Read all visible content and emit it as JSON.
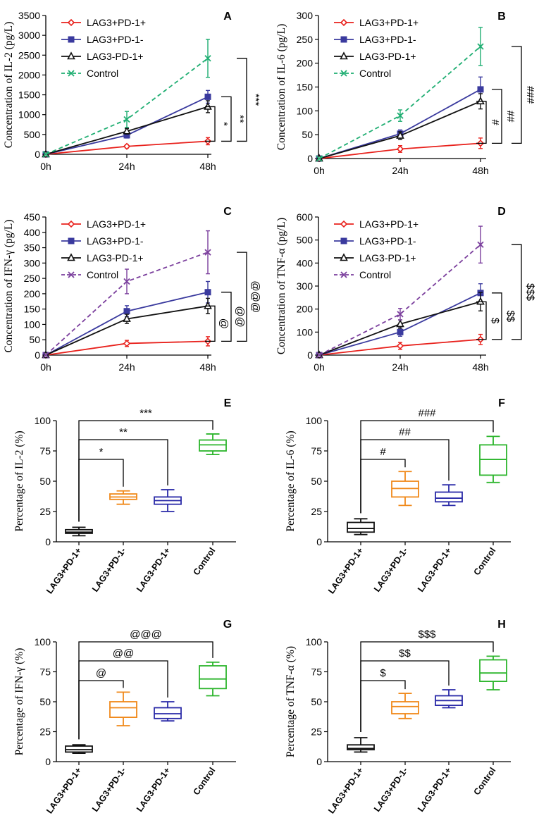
{
  "chart_data": [
    {
      "id": "A",
      "type": "line",
      "panel_label": "A",
      "ylabel": "Concentration of IL-2 (pg/L)",
      "categories": [
        "0h",
        "24h",
        "48h"
      ],
      "ylim": [
        0,
        3500
      ],
      "yticks": [
        0,
        500,
        1000,
        1500,
        2000,
        2500,
        3000,
        3500
      ],
      "legend": "top-left",
      "series": [
        {
          "name": "LAG3+PD-1+",
          "values": [
            0,
            200,
            330
          ],
          "err": [
            0,
            40,
            90
          ],
          "color": "#e8211c",
          "marker": "diamond",
          "dash": false
        },
        {
          "name": "LAG3+PD-1-",
          "values": [
            0,
            480,
            1450
          ],
          "err": [
            0,
            70,
            160
          ],
          "color": "#3a3a9e",
          "marker": "square",
          "dash": false
        },
        {
          "name": "LAG3-PD-1+",
          "values": [
            0,
            580,
            1200
          ],
          "err": [
            0,
            70,
            150
          ],
          "color": "#111111",
          "marker": "triangle",
          "dash": false
        },
        {
          "name": "Control",
          "values": [
            0,
            880,
            2420
          ],
          "err": [
            0,
            200,
            480
          ],
          "color": "#1fae72",
          "marker": "x",
          "dash": true
        }
      ],
      "brackets": [
        {
          "y": [
            330,
            1200
          ],
          "label": "*"
        },
        {
          "y": [
            330,
            1450
          ],
          "label": "**"
        },
        {
          "y": [
            330,
            2420
          ],
          "label": "***"
        }
      ]
    },
    {
      "id": "B",
      "type": "line",
      "panel_label": "B",
      "ylabel": "Concentration of IL-6 (pg/L)",
      "categories": [
        "0h",
        "24h",
        "48h"
      ],
      "ylim": [
        0,
        300
      ],
      "yticks": [
        0,
        50,
        100,
        150,
        200,
        250,
        300
      ],
      "legend": "top-left",
      "series": [
        {
          "name": "LAG3+PD-1+",
          "values": [
            0,
            20,
            32
          ],
          "err": [
            0,
            7,
            11
          ],
          "color": "#e8211c",
          "marker": "diamond",
          "dash": false
        },
        {
          "name": "LAG3+PD-1-",
          "values": [
            0,
            52,
            145
          ],
          "err": [
            0,
            8,
            26
          ],
          "color": "#3a3a9e",
          "marker": "square",
          "dash": false
        },
        {
          "name": "LAG3-PD-1+",
          "values": [
            0,
            48,
            120
          ],
          "err": [
            0,
            8,
            16
          ],
          "color": "#111111",
          "marker": "triangle",
          "dash": false
        },
        {
          "name": "Control",
          "values": [
            0,
            90,
            235
          ],
          "err": [
            0,
            12,
            40
          ],
          "color": "#1fae72",
          "marker": "x",
          "dash": true
        }
      ],
      "brackets": [
        {
          "y": [
            32,
            120
          ],
          "label": "#"
        },
        {
          "y": [
            32,
            145
          ],
          "label": "##"
        },
        {
          "y": [
            32,
            235
          ],
          "label": "###"
        }
      ]
    },
    {
      "id": "C",
      "type": "line",
      "panel_label": "C",
      "ylabel": "Concentration of IFN-γ (pg/L)",
      "categories": [
        "0h",
        "24h",
        "48h"
      ],
      "ylim": [
        0,
        450
      ],
      "yticks": [
        0,
        50,
        100,
        150,
        200,
        250,
        300,
        350,
        400,
        450
      ],
      "legend": "top-left",
      "series": [
        {
          "name": "LAG3+PD-1+",
          "values": [
            0,
            38,
            45
          ],
          "err": [
            0,
            10,
            15
          ],
          "color": "#e8211c",
          "marker": "diamond",
          "dash": false
        },
        {
          "name": "LAG3+PD-1-",
          "values": [
            0,
            143,
            205
          ],
          "err": [
            0,
            18,
            35
          ],
          "color": "#3a3a9e",
          "marker": "square",
          "dash": false
        },
        {
          "name": "LAG3-PD-1+",
          "values": [
            0,
            118,
            160
          ],
          "err": [
            0,
            15,
            25
          ],
          "color": "#111111",
          "marker": "triangle",
          "dash": false
        },
        {
          "name": "Control",
          "values": [
            0,
            240,
            335
          ],
          "err": [
            0,
            40,
            70
          ],
          "color": "#7b3f9d",
          "marker": "x",
          "dash": true
        }
      ],
      "brackets": [
        {
          "y": [
            45,
            160
          ],
          "label": "@"
        },
        {
          "y": [
            45,
            205
          ],
          "label": "@@"
        },
        {
          "y": [
            45,
            335
          ],
          "label": "@@@"
        }
      ]
    },
    {
      "id": "D",
      "type": "line",
      "panel_label": "D",
      "ylabel": "Concentration of TNF-α (pg/L)",
      "categories": [
        "0h",
        "24h",
        "48h"
      ],
      "ylim": [
        0,
        600
      ],
      "yticks": [
        0,
        100,
        200,
        300,
        400,
        500,
        600
      ],
      "legend": "top-left",
      "series": [
        {
          "name": "LAG3+PD-1+",
          "values": [
            0,
            40,
            68
          ],
          "err": [
            0,
            15,
            22
          ],
          "color": "#e8211c",
          "marker": "diamond",
          "dash": false
        },
        {
          "name": "LAG3+PD-1-",
          "values": [
            0,
            100,
            270
          ],
          "err": [
            0,
            18,
            40
          ],
          "color": "#3a3a9e",
          "marker": "square",
          "dash": false
        },
        {
          "name": "LAG3-PD-1+",
          "values": [
            0,
            135,
            232
          ],
          "err": [
            0,
            18,
            40
          ],
          "color": "#111111",
          "marker": "triangle",
          "dash": false
        },
        {
          "name": "Control",
          "values": [
            0,
            178,
            480
          ],
          "err": [
            0,
            25,
            80
          ],
          "color": "#7b3f9d",
          "marker": "x",
          "dash": true
        }
      ],
      "brackets": [
        {
          "y": [
            68,
            232
          ],
          "label": "$"
        },
        {
          "y": [
            68,
            270
          ],
          "label": "$$"
        },
        {
          "y": [
            68,
            480
          ],
          "label": "$$$"
        }
      ]
    },
    {
      "id": "E",
      "type": "box",
      "panel_label": "E",
      "ylabel": "Percentage of IL-2 (%)",
      "categories": [
        "LAG3+PD-1+",
        "LAG3+PD-1-",
        "LAG3-PD-1+",
        "Control"
      ],
      "ylim": [
        0,
        100
      ],
      "yticks": [
        0,
        25,
        50,
        75,
        100
      ],
      "boxes": [
        {
          "min": 5,
          "q1": 7,
          "median": 8,
          "q3": 10,
          "max": 12,
          "color": "#111111"
        },
        {
          "min": 31,
          "q1": 35,
          "median": 37,
          "q3": 39.5,
          "max": 42,
          "color": "#f0891a"
        },
        {
          "min": 25,
          "q1": 31,
          "median": 34,
          "q3": 37,
          "max": 43,
          "color": "#2a2aa8"
        },
        {
          "min": 72,
          "q1": 75,
          "median": 80,
          "q3": 84,
          "max": 89,
          "color": "#2bb52b"
        }
      ],
      "brackets": [
        {
          "target": 1,
          "label": "*"
        },
        {
          "target": 2,
          "label": "**"
        },
        {
          "target": 3,
          "label": "***"
        }
      ]
    },
    {
      "id": "F",
      "type": "box",
      "panel_label": "F",
      "ylabel": "Percentage of IL-6 (%)",
      "categories": [
        "LAG3+PD-1+",
        "LAG3+PD-1-",
        "LAG3-PD-1+",
        "Control"
      ],
      "ylim": [
        0,
        100
      ],
      "yticks": [
        0,
        25,
        50,
        75,
        100
      ],
      "boxes": [
        {
          "min": 6,
          "q1": 8,
          "median": 11,
          "q3": 16,
          "max": 19,
          "color": "#111111"
        },
        {
          "min": 30,
          "q1": 37,
          "median": 44,
          "q3": 50,
          "max": 58,
          "color": "#f0891a"
        },
        {
          "min": 30,
          "q1": 33,
          "median": 36,
          "q3": 41,
          "max": 47,
          "color": "#2a2aa8"
        },
        {
          "min": 49,
          "q1": 55,
          "median": 68,
          "q3": 80,
          "max": 87,
          "color": "#2bb52b"
        }
      ],
      "brackets": [
        {
          "target": 1,
          "label": "#"
        },
        {
          "target": 2,
          "label": "##"
        },
        {
          "target": 3,
          "label": "###"
        }
      ]
    },
    {
      "id": "G",
      "type": "box",
      "panel_label": "G",
      "ylabel": "Percentage of IFN-γ (%)",
      "categories": [
        "LAG3+PD-1+",
        "LAG3+PD-1-",
        "LAG3-PD-1+",
        "Control"
      ],
      "ylim": [
        0,
        100
      ],
      "yticks": [
        0,
        25,
        50,
        75,
        100
      ],
      "boxes": [
        {
          "min": 7,
          "q1": 8,
          "median": 10,
          "q3": 13,
          "max": 14,
          "color": "#111111"
        },
        {
          "min": 30,
          "q1": 37,
          "median": 45,
          "q3": 50,
          "max": 58,
          "color": "#f0891a"
        },
        {
          "min": 34,
          "q1": 36,
          "median": 40,
          "q3": 45,
          "max": 50,
          "color": "#2a2aa8"
        },
        {
          "min": 55,
          "q1": 61,
          "median": 69,
          "q3": 80,
          "max": 83,
          "color": "#2bb52b"
        }
      ],
      "brackets": [
        {
          "target": 1,
          "label": "@"
        },
        {
          "target": 2,
          "label": "@@"
        },
        {
          "target": 3,
          "label": "@@@"
        }
      ]
    },
    {
      "id": "H",
      "type": "box",
      "panel_label": "H",
      "ylabel": "Percentage of TNF-α (%)",
      "categories": [
        "LAG3+PD-1+",
        "LAG3+PD-1-",
        "LAG3-PD-1+",
        "Control"
      ],
      "ylim": [
        0,
        100
      ],
      "yticks": [
        0,
        25,
        50,
        75,
        100
      ],
      "boxes": [
        {
          "min": 8,
          "q1": 10,
          "median": 11,
          "q3": 14,
          "max": 20,
          "color": "#111111"
        },
        {
          "min": 36,
          "q1": 40,
          "median": 46,
          "q3": 50,
          "max": 57,
          "color": "#f0891a"
        },
        {
          "min": 45,
          "q1": 47,
          "median": 51,
          "q3": 55,
          "max": 60,
          "color": "#2a2aa8"
        },
        {
          "min": 60,
          "q1": 67,
          "median": 74,
          "q3": 85,
          "max": 88,
          "color": "#2bb52b"
        }
      ],
      "brackets": [
        {
          "target": 1,
          "label": "$"
        },
        {
          "target": 2,
          "label": "$$"
        },
        {
          "target": 3,
          "label": "$$$"
        }
      ]
    }
  ]
}
